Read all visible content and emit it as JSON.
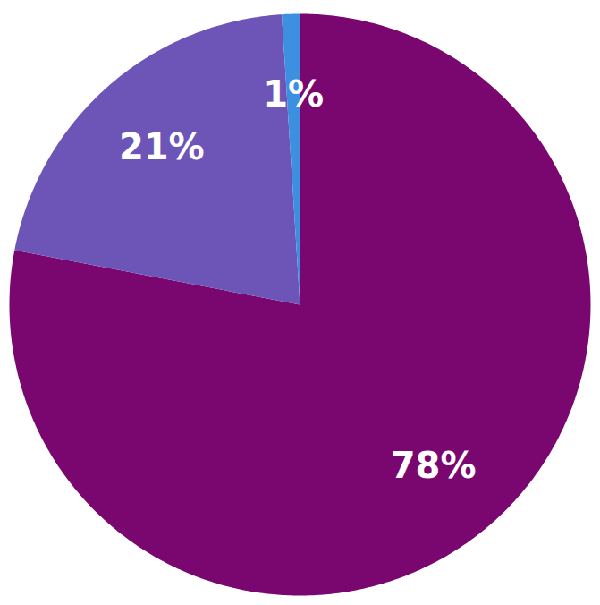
{
  "chart_data": {
    "type": "pie",
    "values": [
      78,
      21,
      1
    ],
    "value_labels": [
      "78%",
      "21%",
      "1%"
    ],
    "colors": [
      "#7a0670",
      "#6d55b8",
      "#3d8fe0"
    ],
    "data_labels": true
  }
}
